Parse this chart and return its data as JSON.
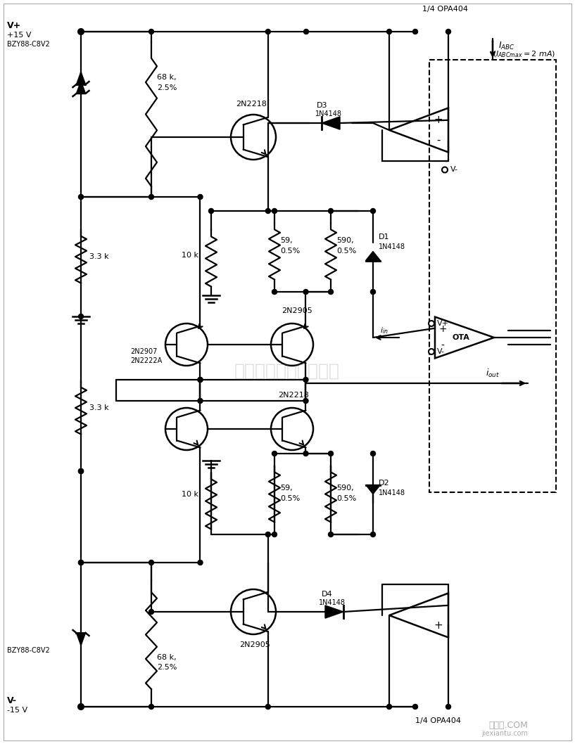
{
  "bg_color": "#ffffff",
  "line_color": "#000000",
  "watermark": "杭州将審科技有限公司",
  "watermark2": "接线图.COM",
  "watermark3": "jiexiantu.com"
}
